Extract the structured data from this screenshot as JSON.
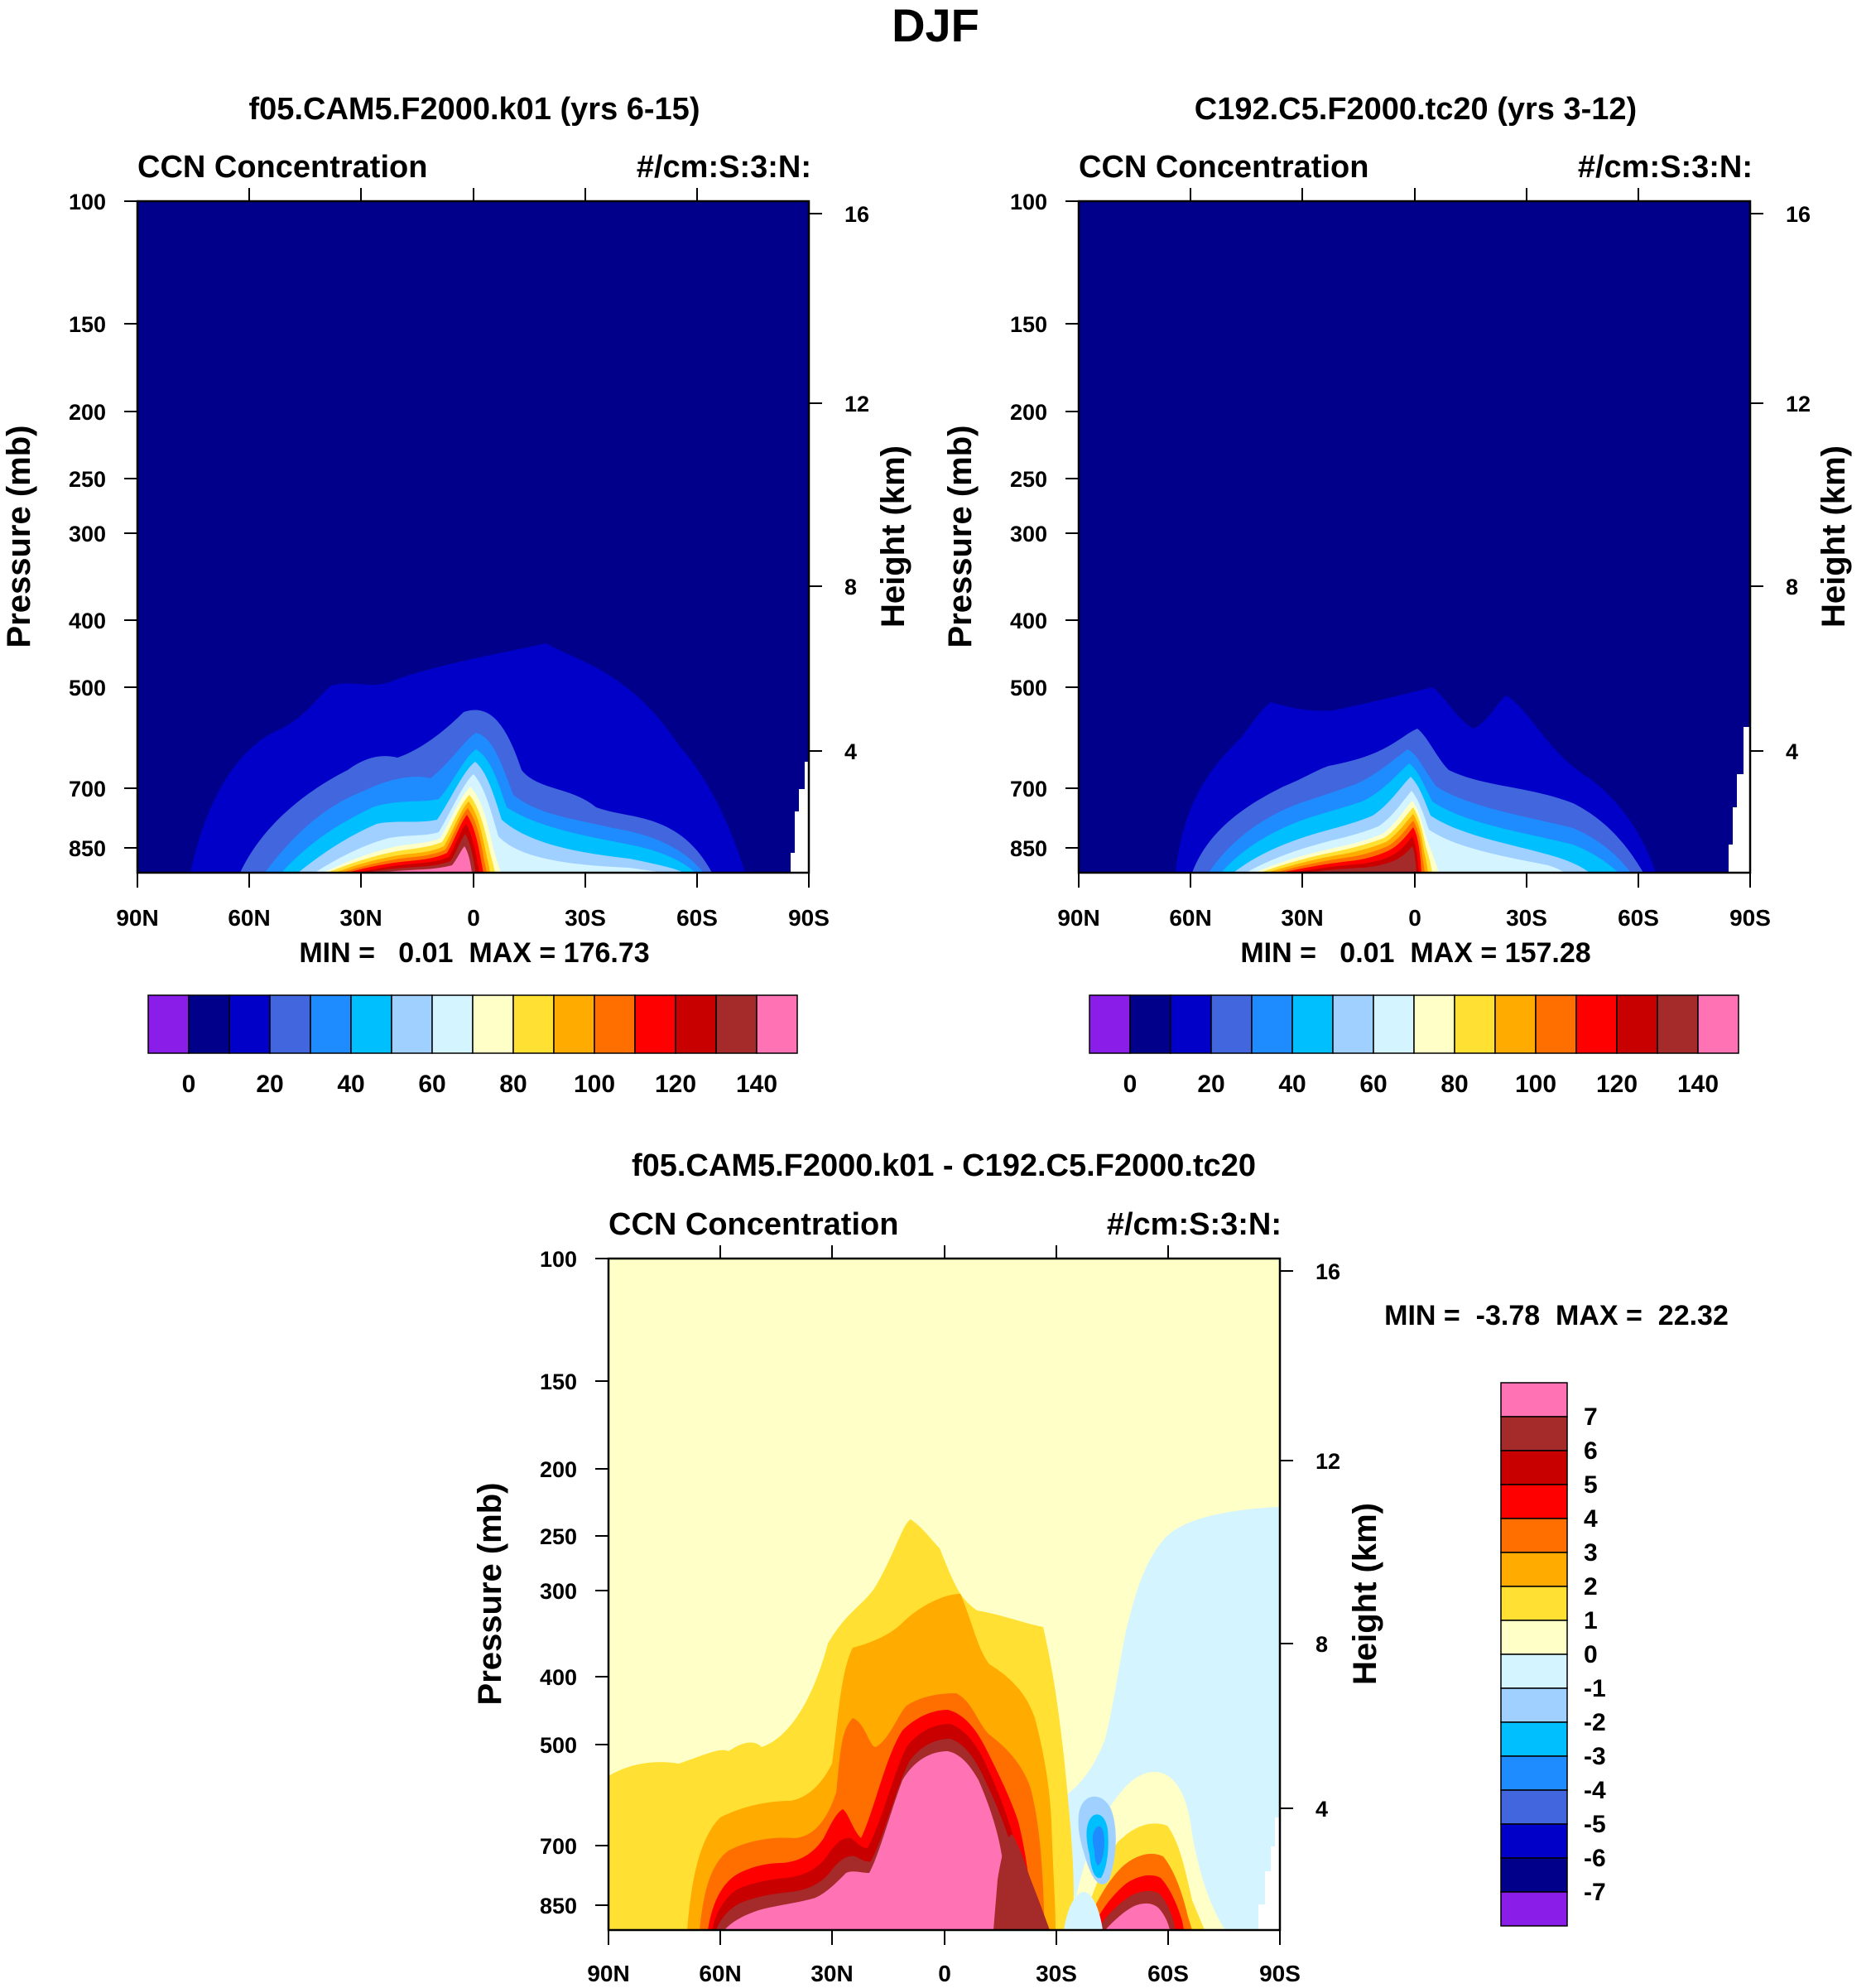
{
  "figure_title": "DJF",
  "colors": {
    "main_palette": [
      "#8a1ee8",
      "#00008a",
      "#0000c8",
      "#4166dd",
      "#1e8cff",
      "#00bfff",
      "#a0d0ff",
      "#d4f4ff",
      "#ffffc8",
      "#ffe033",
      "#ffab00",
      "#ff6f00",
      "#ff0000",
      "#c80000",
      "#a52a2a",
      "#ff72b4"
    ],
    "diff_palette": [
      "#8a1ee8",
      "#00008a",
      "#0000c8",
      "#4166dd",
      "#1e8cff",
      "#00bfff",
      "#a0d0ff",
      "#d4f4ff",
      "#ffffc8",
      "#ffe033",
      "#ffab00",
      "#ff6f00",
      "#ff0000",
      "#c80000",
      "#a52a2a",
      "#ff72b4"
    ]
  },
  "chart_data": [
    {
      "id": "panel-a",
      "type": "heatmap",
      "title": "f05.CAM5.F2000.k01 (yrs 6-15)",
      "left_string": "CCN Concentration",
      "right_string": "#/cm:S:3:N:",
      "xlabel": "",
      "ylabel": "Pressure (mb)",
      "y2label": "Height (km)",
      "x_ticks": [
        "90N",
        "60N",
        "30N",
        "0",
        "30S",
        "60S",
        "90S"
      ],
      "y_ticks": [
        "100",
        "150",
        "200",
        "250",
        "300",
        "400",
        "500",
        "700",
        "850"
      ],
      "y2_ticks": [
        "16",
        "12",
        "8",
        "4"
      ],
      "stats": "MIN =   0.01  MAX = 176.73",
      "min": 0.01,
      "max": 176.73,
      "colorbar_labels": [
        "0",
        "20",
        "40",
        "60",
        "80",
        "100",
        "120",
        "140"
      ],
      "orientation": "horizontal"
    },
    {
      "id": "panel-b",
      "type": "heatmap",
      "title": "C192.C5.F2000.tc20 (yrs 3-12)",
      "left_string": "CCN Concentration",
      "right_string": "#/cm:S:3:N:",
      "xlabel": "",
      "ylabel": "Pressure (mb)",
      "y2label": "Height (km)",
      "x_ticks": [
        "90N",
        "60N",
        "30N",
        "0",
        "30S",
        "60S",
        "90S"
      ],
      "y_ticks": [
        "100",
        "150",
        "200",
        "250",
        "300",
        "400",
        "500",
        "700",
        "850"
      ],
      "y2_ticks": [
        "16",
        "12",
        "8",
        "4"
      ],
      "stats": "MIN =   0.01  MAX = 157.28",
      "min": 0.01,
      "max": 157.28,
      "colorbar_labels": [
        "0",
        "20",
        "40",
        "60",
        "80",
        "100",
        "120",
        "140"
      ],
      "orientation": "horizontal"
    },
    {
      "id": "panel-c",
      "type": "heatmap",
      "title": "f05.CAM5.F2000.k01 - C192.C5.F2000.tc20",
      "left_string": "CCN Concentration",
      "right_string": "#/cm:S:3:N:",
      "xlabel": "",
      "ylabel": "Pressure (mb)",
      "y2label": "Height (km)",
      "x_ticks": [
        "90N",
        "60N",
        "30N",
        "0",
        "30S",
        "60S",
        "90S"
      ],
      "y_ticks": [
        "100",
        "150",
        "200",
        "250",
        "300",
        "400",
        "500",
        "700",
        "850"
      ],
      "y2_ticks": [
        "16",
        "12",
        "8",
        "4"
      ],
      "stats": "MIN =  -3.78  MAX =  22.32",
      "min": -3.78,
      "max": 22.32,
      "colorbar_labels": [
        "7",
        "6",
        "5",
        "4",
        "3",
        "2",
        "1",
        "0",
        "-1",
        "-2",
        "-3",
        "-4",
        "-5",
        "-6",
        "-7"
      ],
      "orientation": "vertical"
    }
  ]
}
